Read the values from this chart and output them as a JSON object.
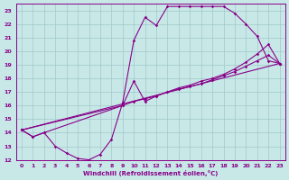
{
  "xlabel": "Windchill (Refroidissement éolien,°C)",
  "xlim": [
    -0.5,
    23.5
  ],
  "ylim": [
    12,
    23.5
  ],
  "xticks": [
    0,
    1,
    2,
    3,
    4,
    5,
    6,
    7,
    8,
    9,
    10,
    11,
    12,
    13,
    14,
    15,
    16,
    17,
    18,
    19,
    20,
    21,
    22,
    23
  ],
  "yticks": [
    12,
    13,
    14,
    15,
    16,
    17,
    18,
    19,
    20,
    21,
    22,
    23
  ],
  "bg_color": "#c8e8e8",
  "grid_color": "#a0c8c8",
  "line_color": "#880088",
  "lines": [
    {
      "x": [
        0,
        1,
        2,
        3,
        4,
        5,
        6,
        7,
        8,
        9,
        10,
        11,
        12,
        13,
        14,
        15,
        16,
        17,
        18,
        19,
        20,
        21,
        22,
        23
      ],
      "y": [
        14.2,
        13.7,
        14.0,
        13.0,
        12.5,
        12.1,
        12.0,
        12.4,
        13.5,
        16.2,
        20.8,
        22.5,
        21.9,
        23.3,
        23.3,
        23.3,
        23.3,
        23.3,
        23.3,
        22.8,
        22.0,
        21.1,
        19.3,
        19.1
      ]
    },
    {
      "x": [
        0,
        1,
        2,
        9,
        10,
        11,
        12,
        13,
        14,
        15,
        16,
        17,
        18,
        19,
        20,
        21,
        22,
        23
      ],
      "y": [
        14.2,
        13.7,
        14.0,
        16.0,
        17.8,
        16.3,
        16.7,
        17.0,
        17.3,
        17.5,
        17.8,
        18.0,
        18.3,
        18.7,
        19.2,
        19.8,
        20.5,
        19.1
      ]
    },
    {
      "x": [
        0,
        9,
        10,
        11,
        12,
        13,
        14,
        15,
        16,
        17,
        18,
        19,
        20,
        21,
        22,
        23
      ],
      "y": [
        14.2,
        16.0,
        16.3,
        16.5,
        16.7,
        17.0,
        17.2,
        17.4,
        17.6,
        17.9,
        18.2,
        18.5,
        18.9,
        19.3,
        19.7,
        19.1
      ]
    },
    {
      "x": [
        0,
        23
      ],
      "y": [
        14.2,
        19.1
      ]
    }
  ]
}
